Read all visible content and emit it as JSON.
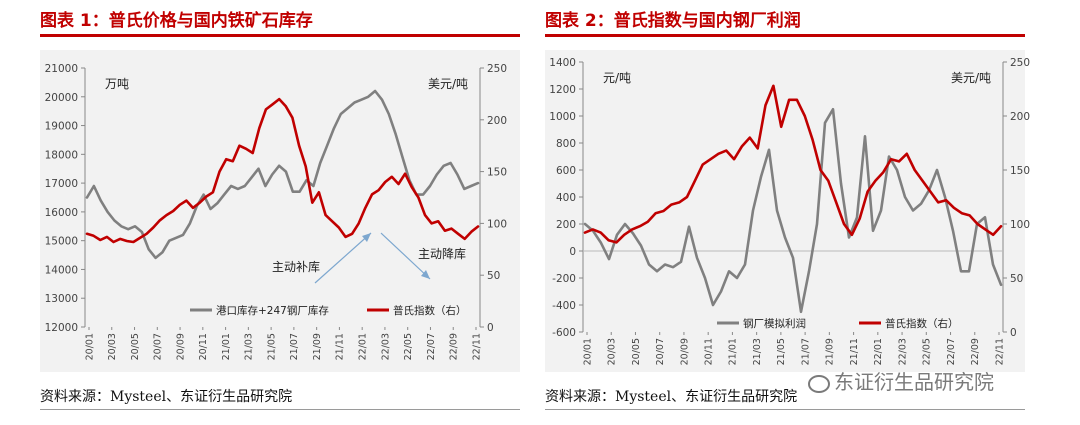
{
  "charts": [
    {
      "title": "图表 1：普氏价格与国内铁矿石库存",
      "source": "资料来源：Mysteel、东证衍生品研究院"
    },
    {
      "title": "图表 2：普氏指数与国内钢厂利润",
      "source": "资料来源：Mysteel、东证衍生品研究院"
    }
  ],
  "watermark": "东证衍生品研究院",
  "chart_data": [
    {
      "type": "line",
      "left_unit": "万吨",
      "right_unit": "美元/吨",
      "y_left_ticks": [
        "21000",
        "20000",
        "19000",
        "18000",
        "17000",
        "16000",
        "15000",
        "14000",
        "13000",
        "12000"
      ],
      "y_right_ticks": [
        "250",
        "200",
        "150",
        "100",
        "50",
        "0"
      ],
      "ylim_left": [
        12000,
        21000
      ],
      "ylim_right": [
        0,
        250
      ],
      "x_ticks": [
        "20/01",
        "20/03",
        "20/05",
        "20/07",
        "20/09",
        "20/11",
        "21/01",
        "21/03",
        "21/05",
        "21/07",
        "21/09",
        "21/11",
        "22/01",
        "22/03",
        "22/05",
        "22/07",
        "22/09",
        "22/11"
      ],
      "annotations": [
        "主动补库",
        "主动降库"
      ],
      "series": [
        {
          "name": "港口库存+247钢厂库存",
          "axis": "left",
          "color": "#808080",
          "values": [
            16500,
            16900,
            16400,
            16000,
            15700,
            15500,
            15400,
            15500,
            15300,
            14700,
            14400,
            14600,
            15000,
            15100,
            15200,
            15600,
            16200,
            16600,
            16100,
            16300,
            16600,
            16900,
            16800,
            16900,
            17200,
            17500,
            16900,
            17300,
            17600,
            17400,
            16700,
            16700,
            17100,
            16900,
            17700,
            18300,
            18900,
            19400,
            19600,
            19800,
            19900,
            20000,
            20200,
            19900,
            19400,
            18700,
            17900,
            17100,
            16600,
            16600,
            16900,
            17300,
            17600,
            17700,
            17300,
            16800,
            16900,
            17000
          ]
        },
        {
          "name": "普氏指数（右）",
          "axis": "right",
          "color": "#c00000",
          "values": [
            90,
            88,
            84,
            87,
            82,
            85,
            83,
            82,
            86,
            90,
            96,
            103,
            108,
            112,
            118,
            122,
            115,
            120,
            126,
            130,
            150,
            162,
            160,
            175,
            172,
            168,
            192,
            210,
            215,
            220,
            213,
            202,
            175,
            155,
            120,
            130,
            108,
            102,
            96,
            87,
            90,
            100,
            115,
            128,
            132,
            140,
            145,
            138,
            148,
            135,
            125,
            108,
            100,
            102,
            93,
            95,
            90,
            85,
            92,
            97
          ]
        }
      ]
    },
    {
      "type": "line",
      "left_unit": "元/吨",
      "right_unit": "美元/吨",
      "y_left_ticks": [
        "1400",
        "1200",
        "1000",
        "800",
        "600",
        "400",
        "200",
        "0",
        "-200",
        "-400",
        "-600"
      ],
      "y_right_ticks": [
        "250",
        "200",
        "150",
        "100",
        "50",
        "0"
      ],
      "ylim_left": [
        -600,
        1400
      ],
      "ylim_right": [
        0,
        250
      ],
      "x_ticks": [
        "20/01",
        "20/03",
        "20/05",
        "20/07",
        "20/09",
        "20/11",
        "21/01",
        "21/03",
        "21/05",
        "21/07",
        "21/09",
        "21/11",
        "22/01",
        "22/03",
        "22/05",
        "22/07",
        "22/09",
        "22/11"
      ],
      "series": [
        {
          "name": "钢厂模拟利润",
          "axis": "left",
          "color": "#808080",
          "values": [
            200,
            150,
            60,
            -60,
            120,
            200,
            130,
            40,
            -100,
            -150,
            -100,
            -120,
            -80,
            180,
            -50,
            -200,
            -400,
            -300,
            -150,
            -200,
            -100,
            300,
            550,
            750,
            300,
            100,
            -50,
            -450,
            -150,
            200,
            950,
            1050,
            500,
            100,
            250,
            850,
            150,
            300,
            700,
            600,
            400,
            300,
            350,
            450,
            600,
            400,
            150,
            -150,
            -150,
            200,
            250,
            -100,
            -250
          ]
        },
        {
          "name": "普氏指数（右）",
          "axis": "right",
          "color": "#c00000",
          "values": [
            92,
            95,
            92,
            85,
            83,
            90,
            95,
            98,
            102,
            110,
            112,
            118,
            120,
            125,
            140,
            155,
            160,
            165,
            168,
            160,
            172,
            180,
            170,
            210,
            228,
            190,
            215,
            215,
            200,
            178,
            150,
            140,
            120,
            100,
            90,
            105,
            130,
            140,
            148,
            160,
            158,
            165,
            150,
            140,
            130,
            120,
            122,
            115,
            110,
            108,
            100,
            95,
            90,
            98
          ]
        }
      ]
    }
  ]
}
